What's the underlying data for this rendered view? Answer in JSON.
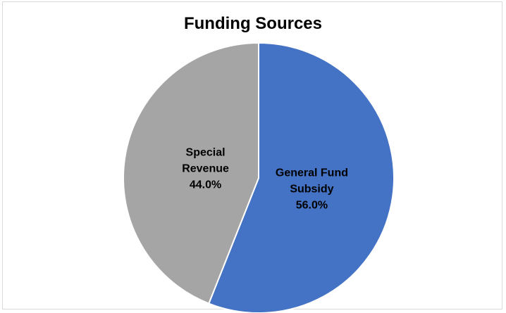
{
  "chart_data": {
    "type": "pie",
    "title": "Funding Sources",
    "slices": [
      {
        "label_lines": [
          "General Fund",
          "Subsidy"
        ],
        "value": 56.0,
        "percent_label": "56.0%",
        "color": "#4472C4"
      },
      {
        "label_lines": [
          "Special",
          "Revenue"
        ],
        "value": 44.0,
        "percent_label": "44.0%",
        "color": "#A5A5A5"
      }
    ],
    "start_angle_deg": 0,
    "direction": "clockwise",
    "legend": "none",
    "data_labels": "inside"
  }
}
